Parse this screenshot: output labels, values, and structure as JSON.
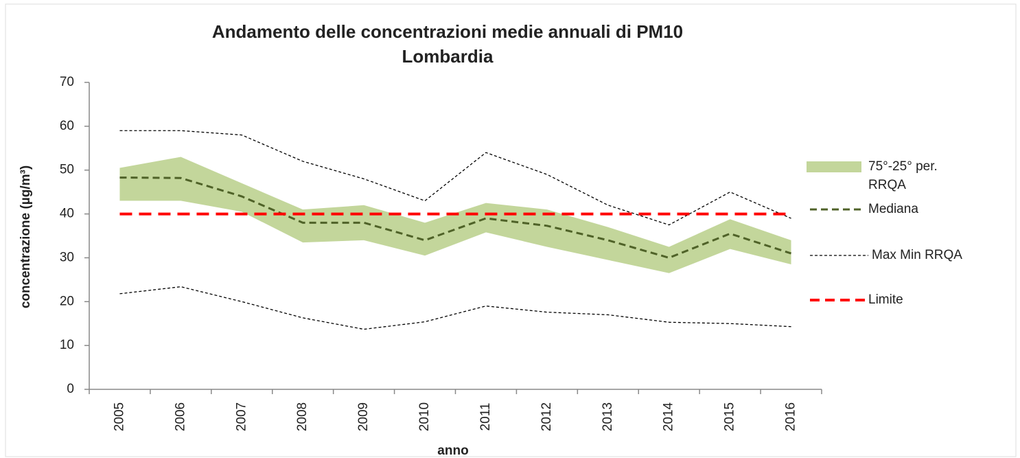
{
  "chart_data": {
    "type": "line",
    "title": "Andamento delle concentrazioni medie annuali di PM10",
    "subtitle": "Lombardia",
    "x_label": "anno",
    "y_label": "concentrazione (µg/m³)",
    "categories": [
      "2005",
      "2006",
      "2007",
      "2008",
      "2009",
      "2010",
      "2011",
      "2012",
      "2013",
      "2014",
      "2015",
      "2016"
    ],
    "ylim": [
      0,
      70
    ],
    "yticks": [
      0,
      10,
      20,
      30,
      40,
      50,
      60,
      70
    ],
    "grid": false,
    "legend": "right",
    "series": [
      {
        "name": "75°-25° per. RRQA",
        "color": "#c3d69b",
        "upper": [
          50.5,
          53,
          47,
          41,
          42,
          38,
          42.5,
          41,
          37,
          32.5,
          38.8,
          34
        ],
        "lower": [
          43,
          43,
          40.5,
          33.5,
          34,
          30.5,
          35.8,
          32.5,
          29.5,
          26.5,
          32,
          28.5
        ]
      },
      {
        "name": "Mediana",
        "color": "#4f6228",
        "values": [
          48.3,
          48.2,
          44,
          38,
          38,
          34,
          39,
          37.3,
          34,
          30,
          35.5,
          31
        ]
      },
      {
        "name": "Max Min RRQA",
        "color": "#000000",
        "max": [
          59,
          59,
          58,
          52,
          48,
          43,
          54,
          49,
          42,
          37.5,
          45,
          39
        ],
        "min": [
          21.8,
          23.4,
          20,
          16.3,
          13.7,
          15.4,
          19,
          17.6,
          17,
          15.3,
          15,
          14.3
        ]
      },
      {
        "name": "Limite",
        "color": "#ff0000",
        "value": 40
      }
    ]
  }
}
